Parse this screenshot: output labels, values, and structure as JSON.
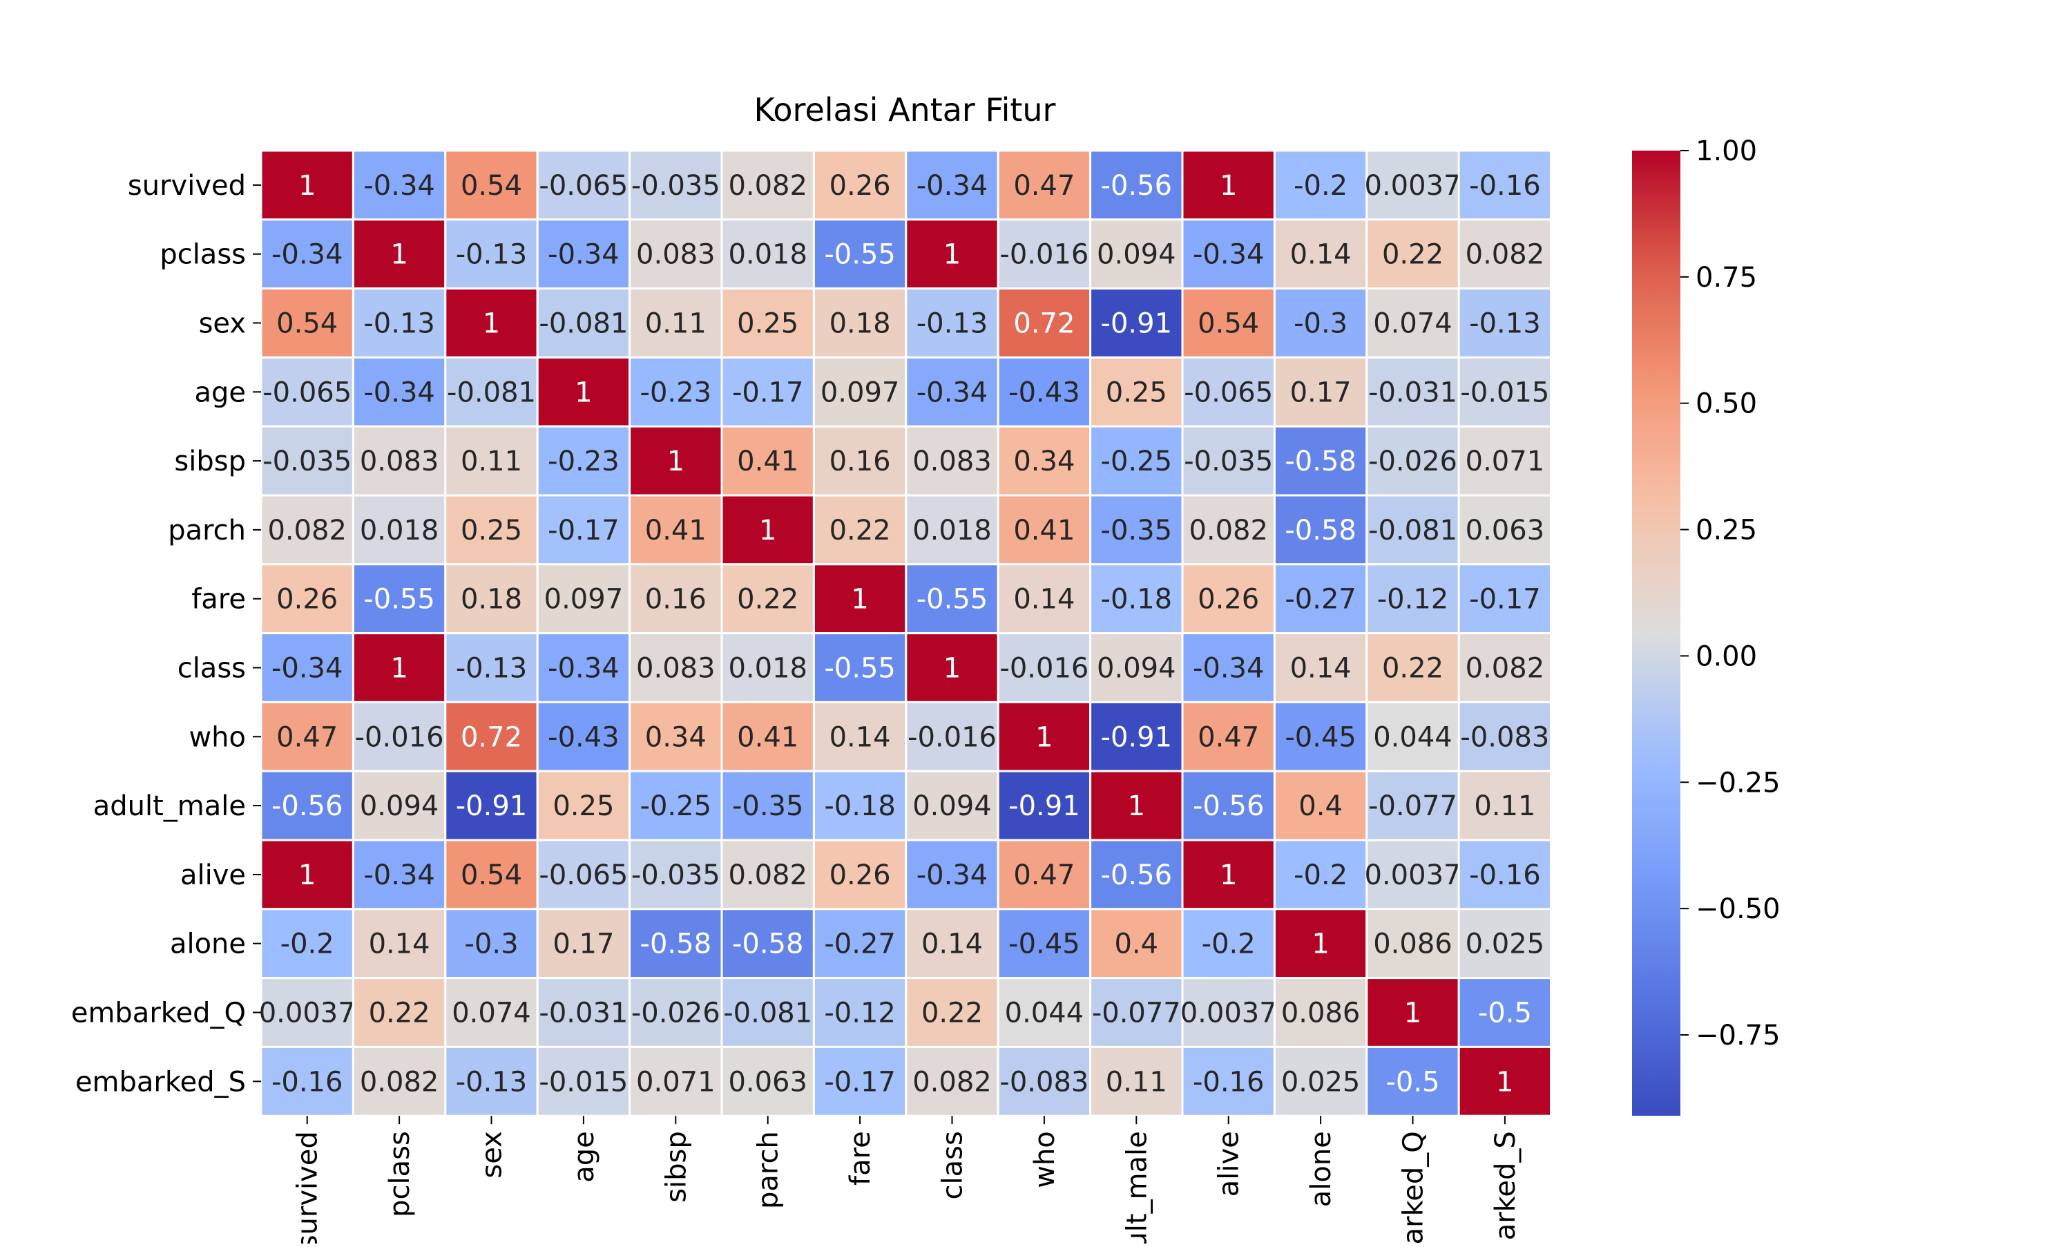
{
  "chart_data": {
    "type": "heatmap",
    "title": "Korelasi Antar Fitur",
    "xlabel": "",
    "ylabel": "",
    "row_labels": [
      "survived",
      "pclass",
      "sex",
      "age",
      "sibsp",
      "parch",
      "fare",
      "class",
      "who",
      "adult_male",
      "alive",
      "alone",
      "embarked_Q",
      "embarked_S"
    ],
    "col_labels": [
      "survived",
      "pclass",
      "sex",
      "age",
      "sibsp",
      "parch",
      "fare",
      "class",
      "who",
      "adult_male",
      "alive",
      "alone",
      "embarked_Q",
      "embarked_S"
    ],
    "col_labels_shown": [
      "survived",
      "pclass",
      "sex",
      "age",
      "sibsp",
      "parch",
      "fare",
      "class",
      "who",
      "ult_male",
      "alive",
      "alone",
      "arked_Q",
      "arked_S"
    ],
    "values": [
      [
        "1",
        "-0.34",
        "0.54",
        "-0.065",
        "-0.035",
        "0.082",
        "0.26",
        "-0.34",
        "0.47",
        "-0.56",
        "1",
        "-0.2",
        "0.0037",
        "-0.16"
      ],
      [
        "-0.34",
        "1",
        "-0.13",
        "-0.34",
        "0.083",
        "0.018",
        "-0.55",
        "1",
        "-0.016",
        "0.094",
        "-0.34",
        "0.14",
        "0.22",
        "0.082"
      ],
      [
        "0.54",
        "-0.13",
        "1",
        "-0.081",
        "0.11",
        "0.25",
        "0.18",
        "-0.13",
        "0.72",
        "-0.91",
        "0.54",
        "-0.3",
        "0.074",
        "-0.13"
      ],
      [
        "-0.065",
        "-0.34",
        "-0.081",
        "1",
        "-0.23",
        "-0.17",
        "0.097",
        "-0.34",
        "-0.43",
        "0.25",
        "-0.065",
        "0.17",
        "-0.031",
        "-0.015"
      ],
      [
        "-0.035",
        "0.083",
        "0.11",
        "-0.23",
        "1",
        "0.41",
        "0.16",
        "0.083",
        "0.34",
        "-0.25",
        "-0.035",
        "-0.58",
        "-0.026",
        "0.071"
      ],
      [
        "0.082",
        "0.018",
        "0.25",
        "-0.17",
        "0.41",
        "1",
        "0.22",
        "0.018",
        "0.41",
        "-0.35",
        "0.082",
        "-0.58",
        "-0.081",
        "0.063"
      ],
      [
        "0.26",
        "-0.55",
        "0.18",
        "0.097",
        "0.16",
        "0.22",
        "1",
        "-0.55",
        "0.14",
        "-0.18",
        "0.26",
        "-0.27",
        "-0.12",
        "-0.17"
      ],
      [
        "-0.34",
        "1",
        "-0.13",
        "-0.34",
        "0.083",
        "0.018",
        "-0.55",
        "1",
        "-0.016",
        "0.094",
        "-0.34",
        "0.14",
        "0.22",
        "0.082"
      ],
      [
        "0.47",
        "-0.016",
        "0.72",
        "-0.43",
        "0.34",
        "0.41",
        "0.14",
        "-0.016",
        "1",
        "-0.91",
        "0.47",
        "-0.45",
        "0.044",
        "-0.083"
      ],
      [
        "-0.56",
        "0.094",
        "-0.91",
        "0.25",
        "-0.25",
        "-0.35",
        "-0.18",
        "0.094",
        "-0.91",
        "1",
        "-0.56",
        "0.4",
        "-0.077",
        "0.11"
      ],
      [
        "1",
        "-0.34",
        "0.54",
        "-0.065",
        "-0.035",
        "0.082",
        "0.26",
        "-0.34",
        "0.47",
        "-0.56",
        "1",
        "-0.2",
        "0.0037",
        "-0.16"
      ],
      [
        "-0.2",
        "0.14",
        "-0.3",
        "0.17",
        "-0.58",
        "-0.58",
        "-0.27",
        "0.14",
        "-0.45",
        "0.4",
        "-0.2",
        "1",
        "0.086",
        "0.025"
      ],
      [
        "0.0037",
        "0.22",
        "0.074",
        "-0.031",
        "-0.026",
        "-0.081",
        "-0.12",
        "0.22",
        "0.044",
        "-0.077",
        "0.0037",
        "0.086",
        "1",
        "-0.5"
      ],
      [
        "-0.16",
        "0.082",
        "-0.13",
        "-0.015",
        "0.071",
        "0.063",
        "-0.17",
        "0.082",
        "-0.083",
        "0.11",
        "-0.16",
        "0.025",
        "-0.5",
        "1"
      ]
    ],
    "colormap": "coolwarm",
    "vmin": -0.91,
    "vmax": 1.0,
    "colorbar_ticks": [
      "1.00",
      "0.75",
      "0.50",
      "0.25",
      "0.00",
      "−0.25",
      "−0.50",
      "−0.75"
    ],
    "colorbar_tick_values": [
      1.0,
      0.75,
      0.5,
      0.25,
      0.0,
      -0.25,
      -0.5,
      -0.75
    ],
    "annotations": true,
    "grid": false,
    "legend": "colorbar-right"
  }
}
